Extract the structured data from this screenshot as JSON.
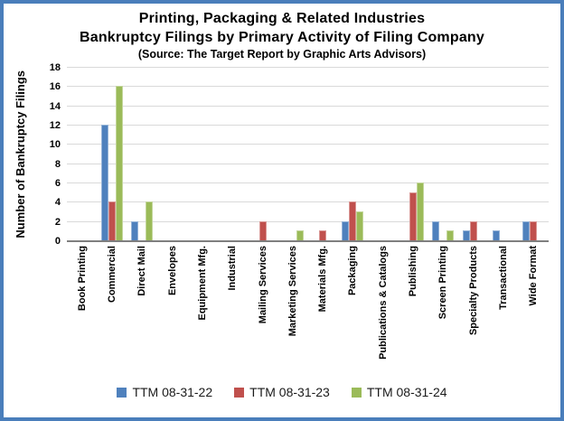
{
  "frame": {
    "border_color": "#4a7ebb",
    "background": "#ffffff"
  },
  "title": {
    "line1": "Printing, Packaging & Related Industries",
    "line2": "Bankruptcy Filings by Primary Activity of Filing Company",
    "source": "(Source: The Target Report by Graphic Arts Advisors)"
  },
  "chart_data": {
    "type": "bar",
    "title": "Printing, Packaging & Related Industries Bankruptcy Filings by Primary Activity of Filing Company",
    "subtitle": "(Source: The Target Report by Graphic Arts Advisors)",
    "ylabel": "Number of Bankruptcy Filings",
    "xlabel": "",
    "ylim": [
      0,
      18
    ],
    "ytick_step": 2,
    "yticks": [
      0,
      2,
      4,
      6,
      8,
      10,
      12,
      14,
      16,
      18
    ],
    "grid": true,
    "gridline_color": "#d9d9d9",
    "axis_line_color": "#7f7f7f",
    "legend_position": "bottom",
    "categories": [
      "Book Printing",
      "Commercial",
      "Direct Mail",
      "Envelopes",
      "Equipment Mfg.",
      "Industrial",
      "Mailing Services",
      "Marketing Services",
      "Materials Mfg.",
      "Packaging",
      "Publications & Catalogs",
      "Publishing",
      "Screen Printing",
      "Specialty Products",
      "Transactional",
      "Wide Format"
    ],
    "series": [
      {
        "name": "TTM 08-31-22",
        "color": "#4f81bd",
        "border_color": "#95b3d7",
        "values": [
          0,
          12,
          2,
          0,
          0,
          0,
          0,
          0,
          0,
          2,
          0,
          0,
          2,
          1,
          1,
          2
        ]
      },
      {
        "name": "TTM 08-31-23",
        "color": "#c0504d",
        "border_color": "#d99694",
        "values": [
          0,
          4,
          0,
          0,
          0,
          0,
          2,
          0,
          1,
          4,
          0,
          5,
          0,
          2,
          0,
          2
        ]
      },
      {
        "name": "TTM 08-31-24",
        "color": "#9bbb59",
        "border_color": "#c3d69b",
        "values": [
          0,
          16,
          4,
          0,
          0,
          0,
          0,
          1,
          0,
          3,
          0,
          6,
          1,
          0,
          0,
          0
        ]
      }
    ]
  }
}
